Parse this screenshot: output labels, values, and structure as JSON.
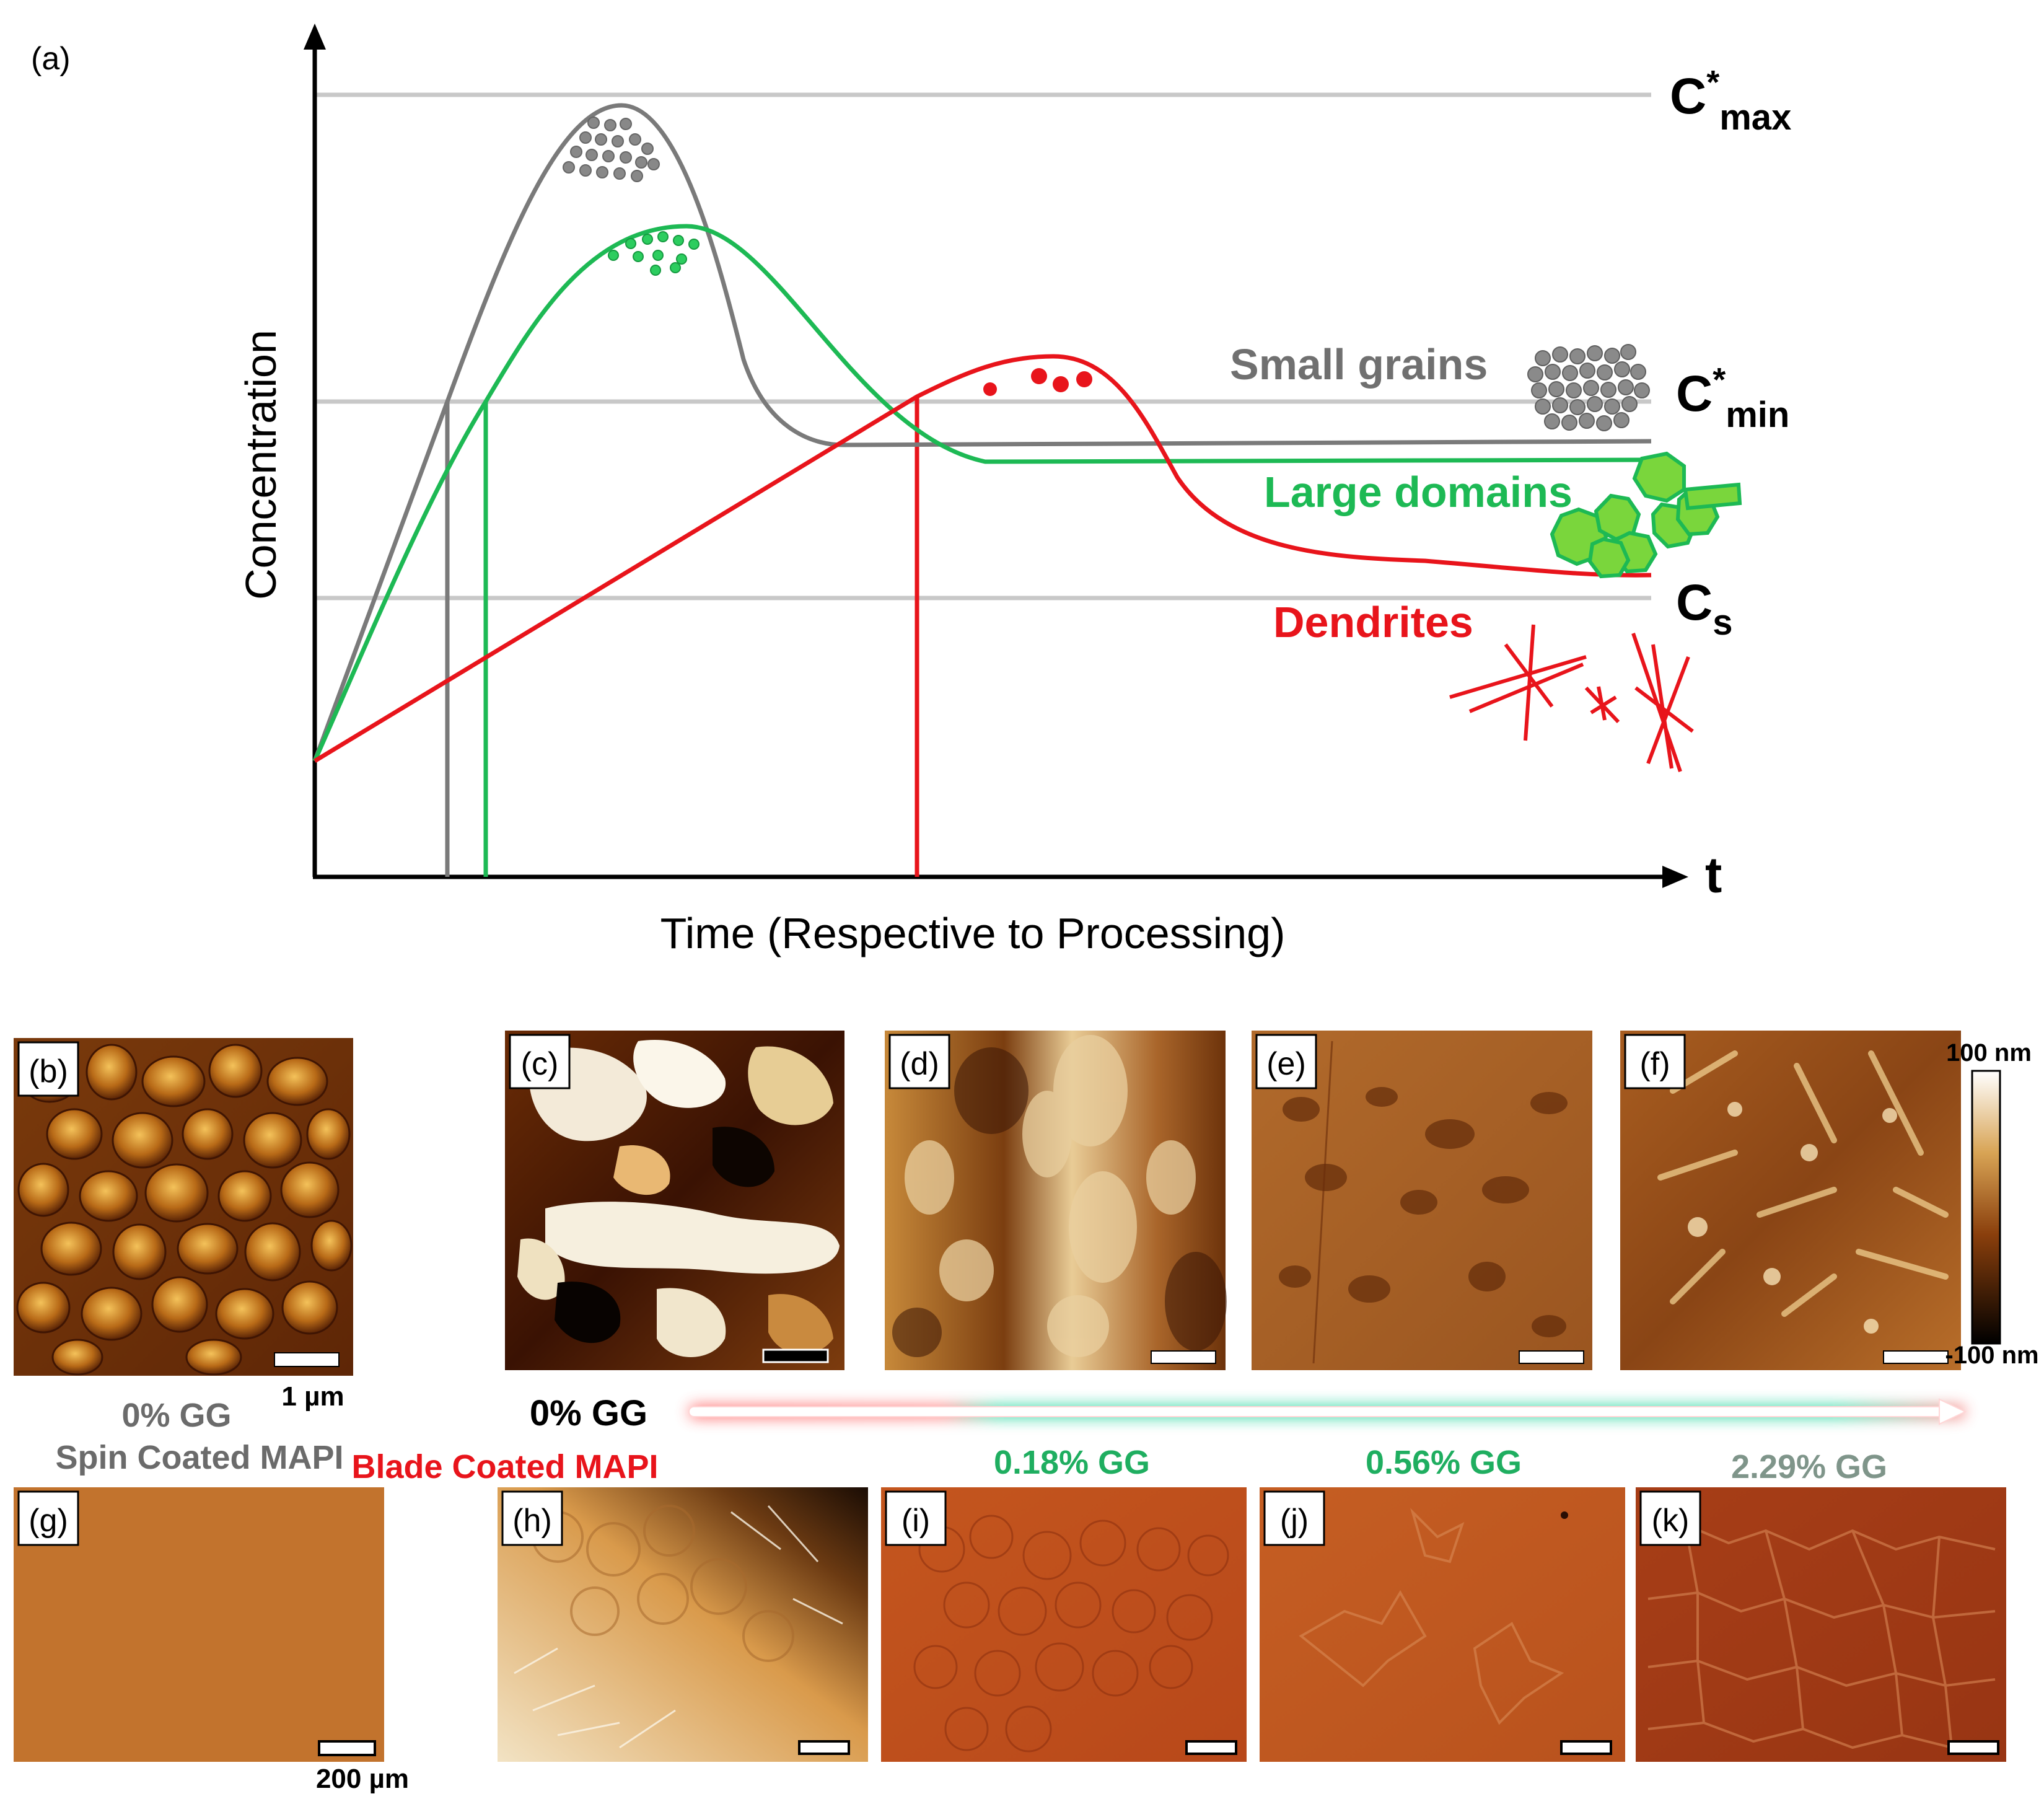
{
  "panel_a": {
    "label": "(a)",
    "x_axis_label": "Time (Respective to Processing)",
    "y_axis_label": "Concentration",
    "x_axis_symbol": "t",
    "levels": {
      "cmax": {
        "base": "C",
        "sup": "*",
        "sub": "max"
      },
      "cmin": {
        "base": "C",
        "sup": "*",
        "sub": "min"
      },
      "cs": {
        "base": "C",
        "sub": "s"
      }
    },
    "annotations": {
      "small_grains": "Small grains",
      "large_domains": "Large domains",
      "dendrites": "Dendrites"
    },
    "colors": {
      "gray": "#7a7a7a",
      "green": "#1db954",
      "red": "#e8141b",
      "guide": "#c8c8c8"
    }
  },
  "afm": {
    "panels": [
      {
        "label": "(b)"
      },
      {
        "label": "(c)"
      },
      {
        "label": "(d)"
      },
      {
        "label": "(e)"
      },
      {
        "label": "(f)"
      }
    ],
    "scale_b": "1 µm",
    "colorbar_max": "100 nm",
    "colorbar_min": "-100 nm"
  },
  "optical": {
    "panels": [
      {
        "label": "(g)"
      },
      {
        "label": "(h)"
      },
      {
        "label": "(i)"
      },
      {
        "label": "(j)"
      },
      {
        "label": "(k)"
      }
    ],
    "scale_g": "200 µm"
  },
  "captions": {
    "spin_gg": "0% GG",
    "spin_title": "Spin Coated MAPI",
    "arrow_start": "0% GG",
    "blade_title": "Blade Coated MAPI",
    "gg_018": "0.18% GG",
    "gg_056": "0.56% GG",
    "gg_229": "2.29% GG"
  }
}
